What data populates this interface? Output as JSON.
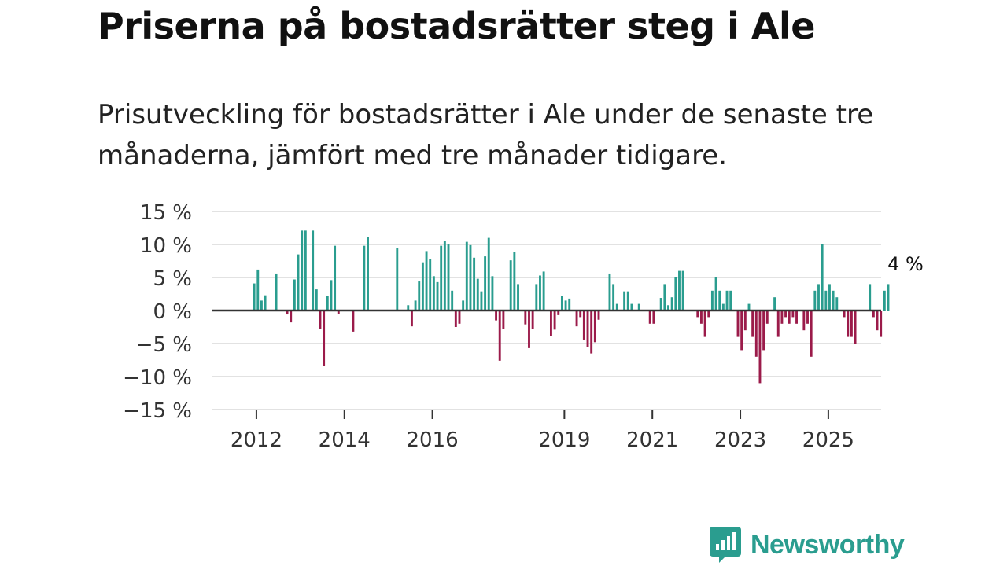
{
  "header": {
    "title": "Priserna på bostadsrätter steg i Ale",
    "subtitle": "Prisutveckling för bostadsrätter i Ale under de senaste tre månaderna, jämfört med tre månader tidigare."
  },
  "chart_data": {
    "type": "bar",
    "ylim": [
      -15,
      15
    ],
    "yticks": [
      15,
      10,
      5,
      0,
      -5,
      -10,
      -15
    ],
    "ytick_labels": [
      "15 %",
      "10 %",
      "5 %",
      "0 %",
      "−5 %",
      "−10 %",
      "−15 %"
    ],
    "xticks": [
      {
        "label": "2012",
        "x": 2012
      },
      {
        "label": "2014",
        "x": 2014
      },
      {
        "label": "2016",
        "x": 2016
      },
      {
        "label": "2019",
        "x": 2019
      },
      {
        "label": "2021",
        "x": 2021
      },
      {
        "label": "2023",
        "x": 2023
      },
      {
        "label": "2025",
        "x": 2025
      }
    ],
    "xlim": [
      2011.0,
      2026.2
    ],
    "start_year": 2011.95,
    "step_years": 0.0833,
    "values": [
      4.1,
      6.2,
      1.5,
      2.3,
      0,
      0,
      5.6,
      0,
      0,
      -0.6,
      -1.8,
      4.7,
      8.5,
      12.1,
      12.1,
      0,
      12.1,
      3.2,
      -2.8,
      -8.4,
      2.2,
      4.6,
      9.8,
      -0.5,
      0,
      0,
      0,
      -3.2,
      0,
      0,
      9.8,
      11.1,
      0,
      0,
      0,
      0,
      0,
      0,
      0,
      9.5,
      0,
      0,
      0.8,
      -2.4,
      1.5,
      4.4,
      7.3,
      9.0,
      7.8,
      5.2,
      4.3,
      9.8,
      10.5,
      10.0,
      3.0,
      -2.5,
      -2.0,
      1.5,
      10.4,
      9.9,
      8.0,
      4.8,
      2.9,
      8.2,
      11.0,
      5.2,
      -1.5,
      -7.6,
      -2.8,
      0,
      7.6,
      8.9,
      4.0,
      0,
      -2.1,
      -5.7,
      -2.8,
      4.0,
      5.3,
      5.9,
      0,
      -3.9,
      -2.9,
      -0.7,
      2.2,
      1.5,
      1.8,
      0,
      -2.4,
      -1.0,
      -4.4,
      -5.5,
      -6.5,
      -4.8,
      -1.4,
      0,
      0,
      5.6,
      4.0,
      1.0,
      0,
      2.9,
      2.9,
      1.0,
      0,
      1.0,
      0,
      0,
      -2.0,
      -2.0,
      0,
      1.9,
      4.0,
      0.8,
      2.0,
      5.0,
      6.0,
      6.0,
      0,
      0,
      0,
      -1.0,
      -2.0,
      -4.0,
      -1.0,
      3.0,
      5.0,
      3.0,
      1.0,
      3.0,
      3.0,
      0,
      -4.0,
      -6.0,
      -3.0,
      1.0,
      -4.0,
      -7.0,
      -11.0,
      -6.0,
      -2.0,
      0,
      2.0,
      -4.0,
      -2.0,
      -1.0,
      -2.0,
      -1.0,
      -2.0,
      0,
      -3.0,
      -2.0,
      -7.0,
      3.0,
      4.0,
      10.0,
      3.0,
      4.0,
      3.0,
      2.0,
      0,
      -1.0,
      -4.0,
      -4.0,
      -5.0,
      0,
      0,
      0,
      4.0,
      -1.0,
      -3.0,
      -4.0,
      3.0,
      4.0
    ],
    "last_label": "4 %",
    "positive_color": "#2a9d8f",
    "negative_color": "#9b1b4a",
    "title": "Priserna på bostadsrätter steg i Ale",
    "xlabel": "",
    "ylabel": ""
  },
  "logo": {
    "text": "Newsworthy",
    "icon": "newsworthy-chart-icon",
    "color": "#2a9d8f"
  }
}
